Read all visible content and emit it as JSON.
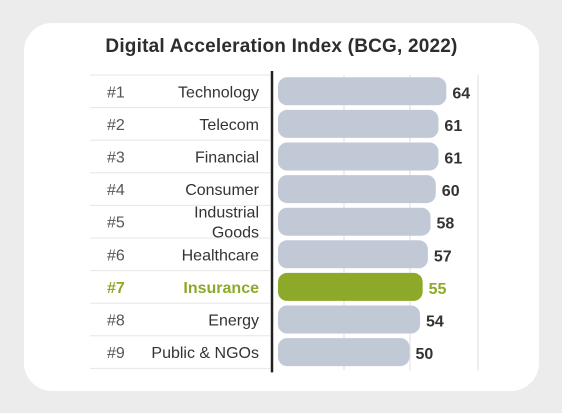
{
  "chart_data": {
    "type": "bar",
    "orientation": "horizontal",
    "title": "Digital Acceleration Index (BCG, 2022)",
    "xlabel": "",
    "ylabel": "",
    "xlim": [
      0,
      70
    ],
    "grid": true,
    "categories": [
      {
        "rank": "#1",
        "label": [
          "Technology"
        ],
        "value": 64,
        "highlight": false
      },
      {
        "rank": "#2",
        "label": [
          "Telecom"
        ],
        "value": 61,
        "highlight": false
      },
      {
        "rank": "#3",
        "label": [
          "Financial"
        ],
        "value": 61,
        "highlight": false
      },
      {
        "rank": "#4",
        "label": [
          "Consumer"
        ],
        "value": 60,
        "highlight": false
      },
      {
        "rank": "#5",
        "label": [
          "Industrial",
          "Goods"
        ],
        "value": 58,
        "highlight": false
      },
      {
        "rank": "#6",
        "label": [
          "Healthcare"
        ],
        "value": 57,
        "highlight": false
      },
      {
        "rank": "#7",
        "label": [
          "Insurance"
        ],
        "value": 55,
        "highlight": true
      },
      {
        "rank": "#8",
        "label": [
          "Energy"
        ],
        "value": 54,
        "highlight": false
      },
      {
        "rank": "#9",
        "label": [
          "Public & NGOs"
        ],
        "value": 50,
        "highlight": false
      }
    ]
  },
  "colors": {
    "bar": "#c2c9d6",
    "highlight": "#8ca92a",
    "text": "#333333",
    "grid": "#dedede",
    "axis": "#222222"
  }
}
